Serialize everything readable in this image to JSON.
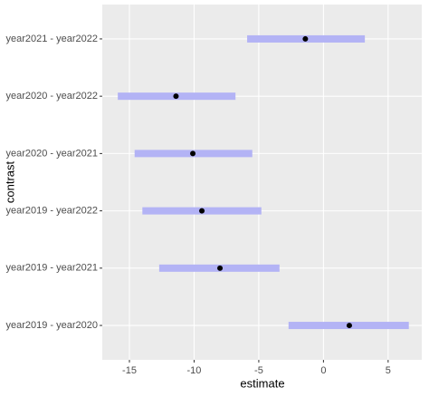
{
  "chart_data": {
    "type": "interval",
    "x_label": "estimate",
    "y_label": "contrast",
    "categories": [
      "year2019 - year2020",
      "year2019 - year2021",
      "year2019 - year2022",
      "year2020 - year2021",
      "year2020 - year2022",
      "year2021 - year2022"
    ],
    "series": [
      {
        "color": "#b3b3f5",
        "values": [
          2.0,
          -8.0,
          -9.4,
          -10.1,
          -11.4,
          -1.4
        ],
        "lower": [
          -2.7,
          -12.7,
          -14.0,
          -14.6,
          -15.9,
          -5.9
        ],
        "upper": [
          6.6,
          -3.4,
          -4.8,
          -5.5,
          -6.8,
          3.2
        ]
      }
    ],
    "point_color": "#000000",
    "xlim": [
      -17.1,
      7.6
    ],
    "xticks": [
      -15,
      -10,
      -5,
      0,
      5
    ],
    "grid": true
  }
}
